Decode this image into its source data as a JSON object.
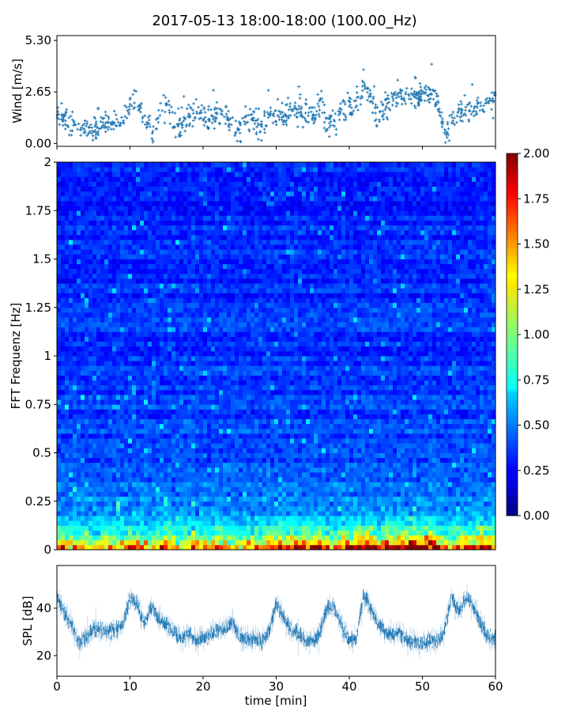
{
  "title": "2017-05-13 18:00-18:00 (100.00_Hz)",
  "chart_data": [
    {
      "type": "scatter",
      "ylabel": "Wind [m/s]",
      "xlim": [
        0,
        60
      ],
      "ylim": [
        -0.15,
        5.55
      ],
      "yticks": [
        "0.00",
        "2.65",
        "5.30"
      ],
      "xticks": [
        0,
        10,
        20,
        30,
        40,
        50,
        60
      ],
      "marker": "+",
      "color": "#1f77b4",
      "x_minutes": [
        0,
        1,
        2,
        3,
        4,
        5,
        6,
        7,
        8,
        9,
        10,
        11,
        12,
        13,
        14,
        15,
        16,
        17,
        18,
        19,
        20,
        21,
        22,
        23,
        24,
        25,
        26,
        27,
        28,
        29,
        30,
        31,
        32,
        33,
        34,
        35,
        36,
        37,
        38,
        39,
        40,
        41,
        42,
        43,
        44,
        45,
        46,
        47,
        48,
        49,
        50,
        51,
        52,
        53,
        54,
        55,
        56,
        57,
        58,
        59,
        60
      ],
      "mean_values": [
        1.5,
        1.3,
        1.0,
        0.9,
        0.8,
        0.5,
        1.1,
        1.0,
        1.1,
        1.2,
        2.0,
        2.2,
        1.0,
        0.6,
        1.2,
        2.0,
        1.0,
        0.9,
        1.2,
        1.6,
        1.3,
        1.0,
        1.4,
        1.6,
        0.6,
        0.5,
        1.4,
        1.2,
        0.8,
        1.5,
        1.6,
        1.4,
        1.7,
        1.5,
        1.6,
        1.3,
        1.7,
        1.0,
        1.2,
        1.7,
        1.9,
        2.3,
        3.0,
        2.3,
        1.2,
        1.8,
        2.4,
        2.4,
        2.4,
        2.3,
        2.5,
        2.7,
        2.2,
        0.6,
        1.1,
        1.6,
        1.8,
        1.6,
        2.0,
        2.0,
        2.1
      ],
      "max_value": 5.3
    },
    {
      "type": "heatmap",
      "ylabel": "FFT Frequenz [Hz]",
      "xlim": [
        0,
        60
      ],
      "ylim": [
        0,
        2
      ],
      "yticks": [
        "0",
        "0.25",
        "0.5",
        "0.75",
        "1",
        "1.25",
        "1.5",
        "1.75",
        "2"
      ],
      "colormap": "jet",
      "colorbar": {
        "range": [
          0,
          2
        ],
        "ticks": [
          "0.00",
          "0.25",
          "0.50",
          "0.75",
          "1.00",
          "1.25",
          "1.50",
          "1.75",
          "2.00"
        ]
      }
    },
    {
      "type": "line",
      "ylabel": "SPL [dB]",
      "xlabel": "time [min]",
      "xlim": [
        0,
        60
      ],
      "ylim": [
        11.3,
        58
      ],
      "yticks": [
        "20",
        "40"
      ],
      "xticks": [
        "0",
        "10",
        "20",
        "30",
        "40",
        "50",
        "60"
      ],
      "color": "#1f77b4",
      "x_minutes": [
        0,
        1,
        2,
        3,
        4,
        5,
        6,
        7,
        8,
        9,
        10,
        11,
        12,
        13,
        14,
        15,
        16,
        17,
        18,
        19,
        20,
        21,
        22,
        23,
        24,
        25,
        26,
        27,
        28,
        29,
        30,
        31,
        32,
        33,
        34,
        35,
        36,
        37,
        38,
        39,
        40,
        41,
        42,
        43,
        44,
        45,
        46,
        47,
        48,
        49,
        50,
        51,
        52,
        53,
        54,
        55,
        56,
        57,
        58,
        59,
        60
      ],
      "values": [
        45,
        38,
        33,
        25,
        28,
        31,
        31,
        30,
        31,
        33,
        44,
        42,
        33,
        41,
        35,
        33,
        30,
        27,
        29,
        26,
        27,
        29,
        31,
        31,
        34,
        28,
        27,
        27,
        26,
        30,
        42,
        36,
        31,
        29,
        26,
        26,
        30,
        41,
        40,
        32,
        26,
        28,
        46,
        39,
        33,
        30,
        29,
        30,
        26,
        26,
        25,
        26,
        26,
        30,
        45,
        38,
        45,
        40,
        33,
        28,
        27
      ]
    }
  ]
}
